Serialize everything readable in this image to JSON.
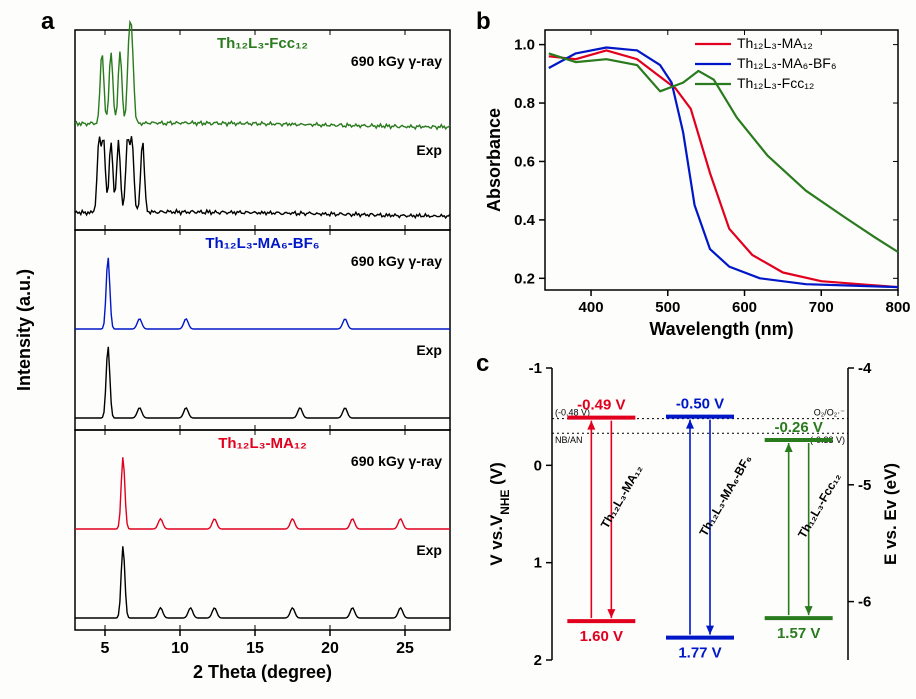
{
  "panel_a": {
    "label": "a",
    "x_label": "2 Theta (degree)",
    "y_label": "Intensity (a.u.)",
    "xlim": [
      3,
      28
    ],
    "xticks": [
      5,
      10,
      15,
      20,
      25
    ],
    "sections": [
      {
        "title": "Th₁₂L₃-Fcc₁₂",
        "title_color": "#2a7a1e",
        "curves": [
          {
            "label": "690 kGy γ-ray",
            "color": "#2a7a1e",
            "peaks": [
              4.8,
              5.4,
              6.0,
              6.6,
              6.8
            ],
            "noise": true
          },
          {
            "label": "Exp",
            "color": "#000000",
            "peaks": [
              4.6,
              4.9,
              5.4,
              5.9,
              6.5,
              6.8,
              7.5
            ],
            "noise": true
          }
        ]
      },
      {
        "title": "Th₁₂L₃-MA₆-BF₆",
        "title_color": "#0017c8",
        "curves": [
          {
            "label": "690 kGy γ-ray",
            "color": "#0017c8",
            "peaks": [
              5.2
            ],
            "minor_peaks": [
              7.3,
              10.4,
              21
            ]
          },
          {
            "label": "Exp",
            "color": "#000000",
            "peaks": [
              5.2
            ],
            "minor_peaks": [
              7.3,
              10.4,
              18,
              21
            ]
          }
        ]
      },
      {
        "title": "Th₁₂L₃-MA₁₂",
        "title_color": "#e1001e",
        "curves": [
          {
            "label": "690 kGy γ-ray",
            "color": "#e1001e",
            "peaks": [
              6.2
            ],
            "minor_peaks": [
              8.7,
              12.3,
              17.5,
              21.5,
              24.7
            ]
          },
          {
            "label": "Exp",
            "color": "#000000",
            "peaks": [
              6.2
            ],
            "minor_peaks": [
              8.7,
              10.7,
              12.3,
              17.5,
              21.5,
              24.7
            ]
          }
        ]
      }
    ],
    "label_fontsize": 18,
    "tick_fontsize": 16
  },
  "panel_b": {
    "label": "b",
    "x_label": "Wavelength (nm)",
    "y_label": "Absorbance",
    "xlim": [
      340,
      800
    ],
    "ylim": [
      0.16,
      1.05
    ],
    "xticks": [
      400,
      500,
      600,
      700,
      800
    ],
    "yticks": [
      0.2,
      0.4,
      0.6,
      0.8,
      1.0
    ],
    "series": [
      {
        "name": "Th₁₂L₃-MA₁₂",
        "color": "#e1001e",
        "x": [
          345,
          380,
          420,
          460,
          490,
          510,
          530,
          555,
          580,
          610,
          650,
          700,
          750,
          800
        ],
        "y": [
          0.96,
          0.95,
          0.98,
          0.95,
          0.89,
          0.85,
          0.78,
          0.56,
          0.37,
          0.28,
          0.22,
          0.19,
          0.18,
          0.17
        ]
      },
      {
        "name": "Th₁₂L₃-MA₆-BF₆",
        "color": "#0017c8",
        "x": [
          345,
          380,
          420,
          460,
          490,
          505,
          520,
          535,
          555,
          580,
          620,
          680,
          740,
          800
        ],
        "y": [
          0.92,
          0.97,
          0.99,
          0.98,
          0.93,
          0.87,
          0.7,
          0.45,
          0.3,
          0.24,
          0.2,
          0.18,
          0.175,
          0.17
        ]
      },
      {
        "name": "Th₁₂L₃-Fcc₁₂",
        "color": "#2a7a1e",
        "x": [
          345,
          380,
          420,
          460,
          490,
          520,
          540,
          560,
          590,
          630,
          680,
          730,
          770,
          800
        ],
        "y": [
          0.97,
          0.94,
          0.95,
          0.93,
          0.84,
          0.87,
          0.91,
          0.88,
          0.75,
          0.62,
          0.5,
          0.41,
          0.34,
          0.29
        ]
      }
    ],
    "label_fontsize": 18,
    "tick_fontsize": 15,
    "legend_fontsize": 14,
    "line_width": 2.2
  },
  "panel_c": {
    "label": "c",
    "left_y_label": "V vs.V_NHE (V)",
    "right_y_label": "E vs. Ev (eV)",
    "left_ylim": [
      2,
      -1
    ],
    "left_yticks": [
      -1,
      0,
      1,
      2
    ],
    "right_yticks": [
      -4,
      -5,
      -6
    ],
    "ref_lines": [
      {
        "label_left": "(-0.48 V)",
        "label_right": "O₂/O₂·⁻",
        "y": -0.48
      },
      {
        "label_left": "NB/AN",
        "label_right": "(-0.33 V)",
        "y": -0.33
      }
    ],
    "materials": [
      {
        "name": "Th₁₂L₃-MA₁₂",
        "color": "#e1001e",
        "top_v": -0.49,
        "bot_v": 1.6,
        "top_label": "-0.49 V",
        "bot_label": "1.60 V"
      },
      {
        "name": "Th₁₂L₃-MA₆-BF₆",
        "color": "#0017c8",
        "top_v": -0.5,
        "bot_v": 1.77,
        "top_label": "-0.50 V",
        "bot_label": "1.77 V"
      },
      {
        "name": "Th₁₂L₃-Fcc₁₂",
        "color": "#2a7a1e",
        "top_v": -0.26,
        "bot_v": 1.57,
        "top_label": "-0.26 V",
        "bot_label": "1.57 V"
      }
    ],
    "label_fontsize": 17,
    "tick_fontsize": 15,
    "value_fontsize": 15
  }
}
